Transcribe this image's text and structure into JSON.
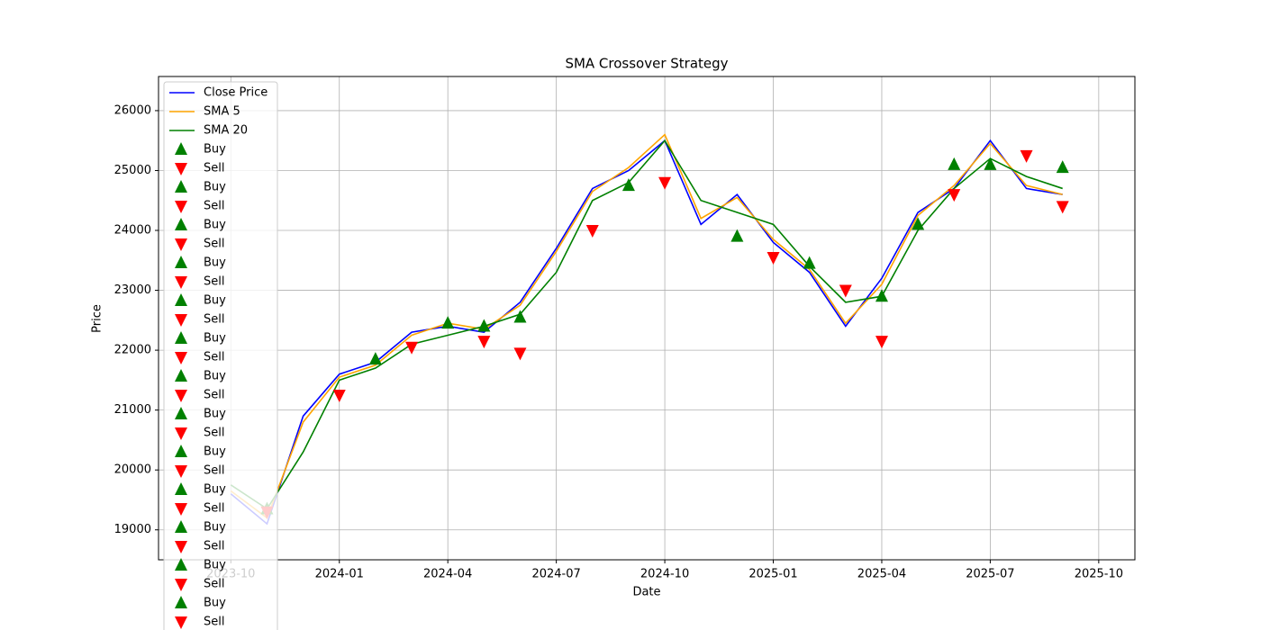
{
  "chart_data": {
    "type": "line",
    "title": "SMA Crossover Strategy",
    "x_label": "Date",
    "y_label": "Price",
    "x": [
      "2023-10",
      "2023-11",
      "2023-12",
      "2024-01",
      "2024-02",
      "2024-03",
      "2024-04",
      "2024-05",
      "2024-06",
      "2024-07",
      "2024-08",
      "2024-09",
      "2024-10",
      "2024-11",
      "2024-12",
      "2025-01",
      "2025-02",
      "2025-03",
      "2025-04",
      "2025-05",
      "2025-06",
      "2025-07",
      "2025-08",
      "2025-09"
    ],
    "xlim": [
      "2023-08",
      "2025-11"
    ],
    "xticks": [
      "2023-10",
      "2024-01",
      "2024-04",
      "2024-07",
      "2024-10",
      "2025-01",
      "2025-04",
      "2025-07",
      "2025-10"
    ],
    "ylim": [
      18500,
      26570
    ],
    "yticks": [
      19000,
      20000,
      21000,
      22000,
      23000,
      24000,
      25000,
      26000
    ],
    "grid": true,
    "legend": "upper left",
    "series": [
      {
        "name": "Close Price",
        "type": "line",
        "color": "#0000ff",
        "values": [
          19600,
          19100,
          20900,
          21600,
          21800,
          22300,
          22400,
          22300,
          22800,
          23700,
          24700,
          25000,
          25500,
          24100,
          24600,
          23800,
          23300,
          22400,
          23200,
          24300,
          24700,
          25500,
          24700,
          24600
        ]
      },
      {
        "name": "SMA 5",
        "type": "line",
        "color": "#ffa500",
        "values": [
          19650,
          19200,
          20800,
          21550,
          21750,
          22250,
          22450,
          22350,
          22750,
          23650,
          24650,
          25050,
          25600,
          24200,
          24550,
          23850,
          23350,
          22450,
          23100,
          24250,
          24750,
          25450,
          24750,
          24600
        ]
      },
      {
        "name": "SMA 20",
        "type": "line",
        "color": "#008000",
        "values": [
          19750,
          19350,
          20300,
          21500,
          21700,
          22100,
          22250,
          22400,
          22600,
          23300,
          24500,
          24800,
          25500,
          24500,
          24300,
          24100,
          23400,
          22800,
          22900,
          24000,
          24700,
          25200,
          24900,
          24700
        ]
      },
      {
        "name": "Buy",
        "type": "scatter",
        "marker": "up",
        "color": "#008000",
        "x": [
          "2023-11"
        ],
        "values": [
          19350
        ]
      },
      {
        "name": "Sell",
        "type": "scatter",
        "marker": "down",
        "color": "#ff0000",
        "x": [
          "2023-11"
        ],
        "values": [
          19300
        ]
      },
      {
        "name": "Buy",
        "type": "scatter",
        "marker": "up",
        "color": "#008000",
        "x": [
          "2024-02"
        ],
        "values": [
          21850
        ]
      },
      {
        "name": "Sell",
        "type": "scatter",
        "marker": "down",
        "color": "#ff0000",
        "x": [
          "2024-01"
        ],
        "values": [
          21250
        ]
      },
      {
        "name": "Buy",
        "type": "scatter",
        "marker": "up",
        "color": "#008000",
        "x": [
          "2024-04"
        ],
        "values": [
          22450
        ]
      },
      {
        "name": "Sell",
        "type": "scatter",
        "marker": "down",
        "color": "#ff0000",
        "x": [
          "2024-03"
        ],
        "values": [
          22050
        ]
      },
      {
        "name": "Buy",
        "type": "scatter",
        "marker": "up",
        "color": "#008000",
        "x": [
          "2024-05"
        ],
        "values": [
          22400
        ]
      },
      {
        "name": "Sell",
        "type": "scatter",
        "marker": "down",
        "color": "#ff0000",
        "x": [
          "2024-05"
        ],
        "values": [
          22150
        ]
      },
      {
        "name": "Buy",
        "type": "scatter",
        "marker": "up",
        "color": "#008000",
        "x": [
          "2024-06"
        ],
        "values": [
          22550
        ]
      },
      {
        "name": "Sell",
        "type": "scatter",
        "marker": "down",
        "color": "#ff0000",
        "x": [
          "2024-06"
        ],
        "values": [
          21950
        ]
      },
      {
        "name": "Buy",
        "type": "scatter",
        "marker": "up",
        "color": "#008000",
        "x": [
          "2024-09"
        ],
        "values": [
          24750
        ]
      },
      {
        "name": "Sell",
        "type": "scatter",
        "marker": "down",
        "color": "#ff0000",
        "x": [
          "2024-08"
        ],
        "values": [
          24000
        ]
      },
      {
        "name": "Buy",
        "type": "scatter",
        "marker": "up",
        "color": "#008000",
        "x": [
          "2024-12"
        ],
        "values": [
          23900
        ]
      },
      {
        "name": "Sell",
        "type": "scatter",
        "marker": "down",
        "color": "#ff0000",
        "x": [
          "2024-10"
        ],
        "values": [
          24800
        ]
      },
      {
        "name": "Buy",
        "type": "scatter",
        "marker": "up",
        "color": "#008000",
        "x": [
          "2025-02"
        ],
        "values": [
          23450
        ]
      },
      {
        "name": "Sell",
        "type": "scatter",
        "marker": "down",
        "color": "#ff0000",
        "x": [
          "2025-01"
        ],
        "values": [
          23550
        ]
      },
      {
        "name": "Buy",
        "type": "scatter",
        "marker": "up",
        "color": "#008000",
        "x": [
          "2025-04"
        ],
        "values": [
          22900
        ]
      },
      {
        "name": "Sell",
        "type": "scatter",
        "marker": "down",
        "color": "#ff0000",
        "x": [
          "2025-03"
        ],
        "values": [
          23000
        ]
      },
      {
        "name": "Buy",
        "type": "scatter",
        "marker": "up",
        "color": "#008000",
        "x": [
          "2025-05"
        ],
        "values": [
          24100
        ]
      },
      {
        "name": "Sell",
        "type": "scatter",
        "marker": "down",
        "color": "#ff0000",
        "x": [
          "2025-04"
        ],
        "values": [
          22150
        ]
      },
      {
        "name": "Buy",
        "type": "scatter",
        "marker": "up",
        "color": "#008000",
        "x": [
          "2025-06"
        ],
        "values": [
          25100
        ]
      },
      {
        "name": "Sell",
        "type": "scatter",
        "marker": "down",
        "color": "#ff0000",
        "x": [
          "2025-06"
        ],
        "values": [
          24600
        ]
      },
      {
        "name": "Buy",
        "type": "scatter",
        "marker": "up",
        "color": "#008000",
        "x": [
          "2025-07"
        ],
        "values": [
          25100
        ]
      },
      {
        "name": "Sell",
        "type": "scatter",
        "marker": "down",
        "color": "#ff0000",
        "x": [
          "2025-08"
        ],
        "values": [
          25250
        ]
      },
      {
        "name": "Buy",
        "type": "scatter",
        "marker": "up",
        "color": "#008000",
        "x": [
          "2025-09"
        ],
        "values": [
          25050
        ]
      },
      {
        "name": "Sell",
        "type": "scatter",
        "marker": "down",
        "color": "#ff0000",
        "x": [
          "2025-09"
        ],
        "values": [
          24400
        ]
      }
    ]
  }
}
